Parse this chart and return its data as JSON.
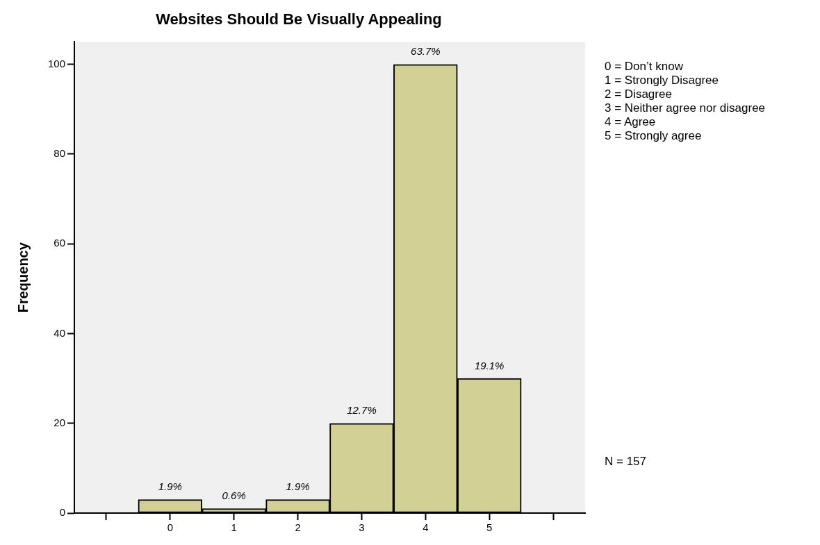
{
  "chart_data": {
    "type": "bar",
    "title": "Websites Should Be Visually Appealing",
    "ylabel": "Frequency",
    "categories": [
      null,
      "0",
      "1",
      "2",
      "3",
      "4",
      "5",
      null
    ],
    "values": [
      null,
      3,
      1,
      3,
      20,
      100,
      30,
      null
    ],
    "color": "#d2d094",
    "ylim": [
      0,
      105
    ],
    "yticks": [
      0,
      20,
      40,
      60,
      80,
      100
    ],
    "grid": false,
    "legend": false,
    "annotations": [
      {
        "text": "1.9%",
        "x": "0",
        "y": 3
      },
      {
        "text": "0.6%",
        "x": "1",
        "y": 1
      },
      {
        "text": "1.9%",
        "x": "2",
        "y": 3
      },
      {
        "text": "12.7%",
        "x": "3",
        "y": 20
      },
      {
        "text": "63.7%",
        "x": "4",
        "y": 100
      },
      {
        "text": "19.1%",
        "x": "5",
        "y": 30
      },
      "0 = Don’t know",
      "1 = Strongly Disagree",
      "2 = Disagree",
      "3 = Neither agree nor disagree",
      "4 = Agree",
      "5 = Strongly agree",
      "N = 157"
    ]
  }
}
